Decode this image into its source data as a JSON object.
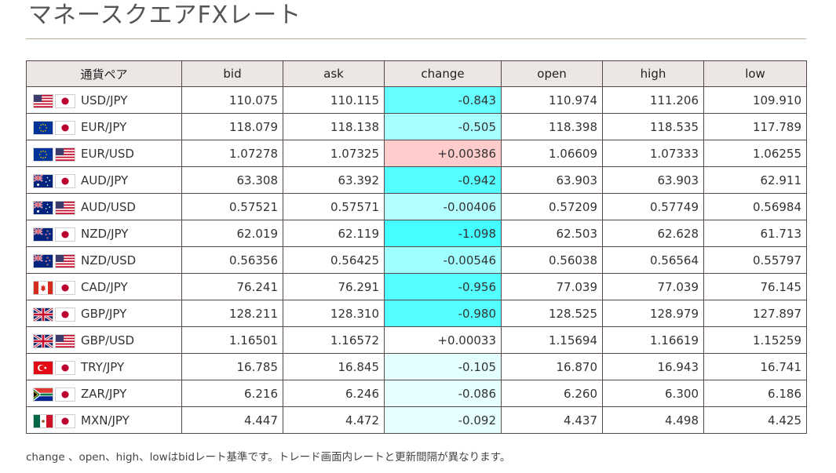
{
  "header": {
    "title": "マネースクエアFXレート"
  },
  "table": {
    "columns": [
      "通貨ペア",
      "bid",
      "ask",
      "change",
      "open",
      "high",
      "low"
    ],
    "rows": [
      {
        "pair": "USD/JPY",
        "base_flag": "us-flag-icon",
        "quote_flag": "jp-flag-icon",
        "bid": "110.075",
        "ask": "110.115",
        "change": "-0.843",
        "change_color": "#66ffff",
        "open": "110.974",
        "high": "111.206",
        "low": "109.910"
      },
      {
        "pair": "EUR/JPY",
        "base_flag": "eu-flag-icon",
        "quote_flag": "jp-flag-icon",
        "bid": "118.079",
        "ask": "118.138",
        "change": "-0.505",
        "change_color": "#a8ffff",
        "open": "118.398",
        "high": "118.535",
        "low": "117.789"
      },
      {
        "pair": "EUR/USD",
        "base_flag": "eu-flag-icon",
        "quote_flag": "us-flag-icon",
        "bid": "1.07278",
        "ask": "1.07325",
        "change": "+0.00386",
        "change_color": "#ffcccc",
        "open": "1.06609",
        "high": "1.07333",
        "low": "1.06255"
      },
      {
        "pair": "AUD/JPY",
        "base_flag": "au-flag-icon",
        "quote_flag": "jp-flag-icon",
        "bid": "63.308",
        "ask": "63.392",
        "change": "-0.942",
        "change_color": "#55ffff",
        "open": "63.903",
        "high": "63.903",
        "low": "62.911"
      },
      {
        "pair": "AUD/USD",
        "base_flag": "au-flag-icon",
        "quote_flag": "us-flag-icon",
        "bid": "0.57521",
        "ask": "0.57571",
        "change": "-0.00406",
        "change_color": "#b3ffff",
        "open": "0.57209",
        "high": "0.57749",
        "low": "0.56984"
      },
      {
        "pair": "NZD/JPY",
        "base_flag": "nz-flag-icon",
        "quote_flag": "jp-flag-icon",
        "bid": "62.019",
        "ask": "62.119",
        "change": "-1.098",
        "change_color": "#44ffff",
        "open": "62.503",
        "high": "62.628",
        "low": "61.713"
      },
      {
        "pair": "NZD/USD",
        "base_flag": "nz-flag-icon",
        "quote_flag": "us-flag-icon",
        "bid": "0.56356",
        "ask": "0.56425",
        "change": "-0.00546",
        "change_color": "#a0ffff",
        "open": "0.56038",
        "high": "0.56564",
        "low": "0.55797"
      },
      {
        "pair": "CAD/JPY",
        "base_flag": "ca-flag-icon",
        "quote_flag": "jp-flag-icon",
        "bid": "76.241",
        "ask": "76.291",
        "change": "-0.956",
        "change_color": "#55ffff",
        "open": "77.039",
        "high": "77.039",
        "low": "76.145"
      },
      {
        "pair": "GBP/JPY",
        "base_flag": "gb-flag-icon",
        "quote_flag": "jp-flag-icon",
        "bid": "128.211",
        "ask": "128.310",
        "change": "-0.980",
        "change_color": "#55ffff",
        "open": "128.525",
        "high": "128.979",
        "low": "127.897"
      },
      {
        "pair": "GBP/USD",
        "base_flag": "gb-flag-icon",
        "quote_flag": "us-flag-icon",
        "bid": "1.16501",
        "ask": "1.16572",
        "change": "+0.00033",
        "change_color": "#ffffff",
        "open": "1.15694",
        "high": "1.16619",
        "low": "1.15259"
      },
      {
        "pair": "TRY/JPY",
        "base_flag": "tr-flag-icon",
        "quote_flag": "jp-flag-icon",
        "bid": "16.785",
        "ask": "16.845",
        "change": "-0.105",
        "change_color": "#e3ffff",
        "open": "16.870",
        "high": "16.943",
        "low": "16.741"
      },
      {
        "pair": "ZAR/JPY",
        "base_flag": "za-flag-icon",
        "quote_flag": "jp-flag-icon",
        "bid": "6.216",
        "ask": "6.246",
        "change": "-0.086",
        "change_color": "#e6ffff",
        "open": "6.260",
        "high": "6.300",
        "low": "6.186"
      },
      {
        "pair": "MXN/JPY",
        "base_flag": "mx-flag-icon",
        "quote_flag": "jp-flag-icon",
        "bid": "4.447",
        "ask": "4.472",
        "change": "-0.092",
        "change_color": "#e6ffff",
        "open": "4.437",
        "high": "4.498",
        "low": "4.425"
      }
    ]
  },
  "footer": {
    "note": "change 、open、high、lowはbidレート基準です。トレード画面内レートと更新間隔が異なります。"
  },
  "colors": {
    "header_bg": "#ece6e5",
    "border": "#544848",
    "rule": "#b7aa93"
  }
}
